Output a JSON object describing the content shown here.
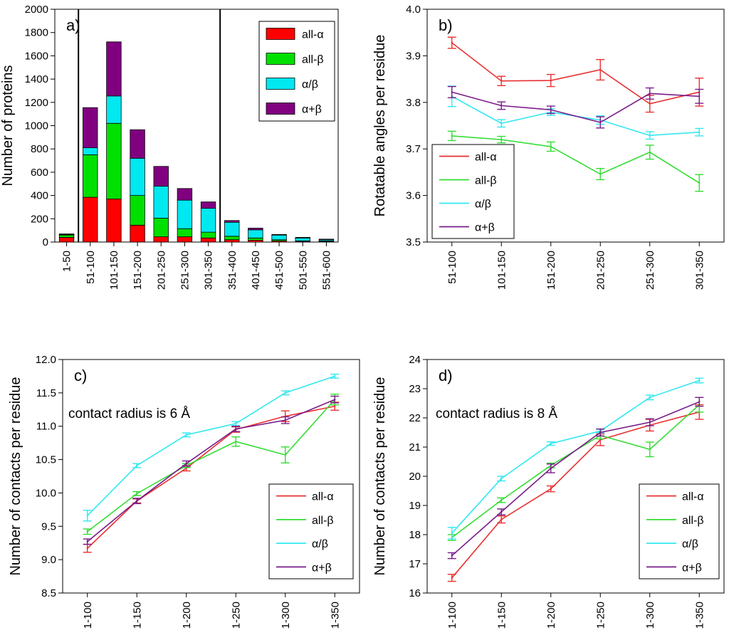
{
  "chart_data": [
    {
      "id": "a",
      "type": "bar",
      "stacked": true,
      "panel_label": "a)",
      "ylabel": "Number of proteins",
      "xlabel": "",
      "ylim": [
        0,
        2000
      ],
      "yticks": [
        0,
        200,
        400,
        600,
        800,
        1000,
        1200,
        1400,
        1600,
        1800,
        2000
      ],
      "categories": [
        "1-50",
        "51-100",
        "101-150",
        "151-200",
        "201-250",
        "251-300",
        "301-350",
        "351-400",
        "401-450",
        "451-500",
        "501-550",
        "551-600"
      ],
      "series": [
        {
          "name": "all-α",
          "color": "#ff0000",
          "values": [
            40,
            385,
            370,
            145,
            45,
            45,
            35,
            20,
            15,
            10,
            5,
            5
          ]
        },
        {
          "name": "all-β",
          "color": "#00e000",
          "values": [
            20,
            365,
            650,
            255,
            160,
            70,
            50,
            30,
            20,
            10,
            5,
            5
          ]
        },
        {
          "name": "α/β",
          "color": "#00e8f0",
          "values": [
            5,
            60,
            235,
            320,
            275,
            245,
            205,
            120,
            70,
            40,
            25,
            10
          ]
        },
        {
          "name": "α+β",
          "color": "#800080",
          "values": [
            5,
            345,
            465,
            245,
            170,
            100,
            55,
            15,
            15,
            5,
            5,
            5
          ]
        }
      ],
      "vlines_between_categories": [
        [
          0,
          1
        ],
        [
          6,
          7
        ]
      ],
      "legend": "top-right"
    },
    {
      "id": "b",
      "type": "line",
      "panel_label": "b)",
      "ylabel": "Rotatable angles per residue",
      "xlabel": "",
      "ylim": [
        3.5,
        4.0
      ],
      "yticks": [
        "3.5",
        "3.6",
        "3.7",
        "3.8",
        "3.9",
        "4.0"
      ],
      "categories": [
        "51-100",
        "101-150",
        "151-200",
        "201-250",
        "251-300",
        "301-350"
      ],
      "series": [
        {
          "name": "all-α",
          "color": "#e83030",
          "values": [
            3.928,
            3.846,
            3.847,
            3.87,
            3.797,
            3.822
          ],
          "errors": [
            0.012,
            0.01,
            0.013,
            0.022,
            0.018,
            0.03
          ]
        },
        {
          "name": "all-β",
          "color": "#33dd33",
          "values": [
            3.728,
            3.72,
            3.705,
            3.646,
            3.693,
            3.627
          ],
          "errors": [
            0.01,
            0.007,
            0.01,
            0.012,
            0.015,
            0.018
          ]
        },
        {
          "name": "α/β",
          "color": "#33e8f0",
          "values": [
            3.813,
            3.755,
            3.779,
            3.762,
            3.729,
            3.736
          ],
          "errors": [
            0.022,
            0.008,
            0.007,
            0.009,
            0.008,
            0.008
          ]
        },
        {
          "name": "α+β",
          "color": "#7a1c8a",
          "values": [
            3.822,
            3.793,
            3.784,
            3.757,
            3.819,
            3.813
          ],
          "errors": [
            0.012,
            0.008,
            0.008,
            0.012,
            0.012,
            0.015
          ]
        }
      ],
      "legend": "bottom-left"
    },
    {
      "id": "c",
      "type": "line",
      "panel_label": "c)",
      "annotation": "contact radius is 6 Å",
      "ylabel": "Number of contacts per residue",
      "xlabel": "",
      "ylim": [
        8.5,
        12.0
      ],
      "yticks": [
        "8.5",
        "9.0",
        "9.5",
        "10.0",
        "10.5",
        "11.0",
        "11.5",
        "12.0"
      ],
      "categories": [
        "1-100",
        "1-150",
        "1-200",
        "1-250",
        "1-300",
        "1-350"
      ],
      "series": [
        {
          "name": "all-α",
          "color": "#e83030",
          "values": [
            9.17,
            9.88,
            10.37,
            10.95,
            11.15,
            11.3
          ],
          "errors": [
            0.06,
            0.03,
            0.04,
            0.04,
            0.08,
            0.06
          ]
        },
        {
          "name": "all-β",
          "color": "#33dd33",
          "values": [
            9.42,
            9.99,
            10.41,
            10.77,
            10.57,
            11.4
          ],
          "errors": [
            0.04,
            0.03,
            0.03,
            0.07,
            0.12,
            0.08
          ]
        },
        {
          "name": "α/β",
          "color": "#33e8f0",
          "values": [
            9.66,
            10.41,
            10.87,
            11.04,
            11.5,
            11.75
          ],
          "errors": [
            0.08,
            0.03,
            0.03,
            0.03,
            0.03,
            0.03
          ]
        },
        {
          "name": "α+β",
          "color": "#7a1c8a",
          "values": [
            9.27,
            9.88,
            10.44,
            10.96,
            11.09,
            11.4
          ],
          "errors": [
            0.04,
            0.04,
            0.04,
            0.04,
            0.05,
            0.05
          ]
        }
      ],
      "legend": "bottom-right"
    },
    {
      "id": "d",
      "type": "line",
      "panel_label": "d)",
      "annotation": "contact radius is 8 Å",
      "ylabel": "Number of contacts per residue",
      "xlabel": "",
      "ylim": [
        16,
        24
      ],
      "yticks": [
        "16",
        "17",
        "18",
        "19",
        "20",
        "21",
        "22",
        "23",
        "24"
      ],
      "categories": [
        "1-100",
        "1-150",
        "1-200",
        "1-250",
        "1-300",
        "1-350"
      ],
      "series": [
        {
          "name": "all-α",
          "color": "#e83030",
          "values": [
            16.52,
            18.52,
            19.57,
            21.25,
            21.75,
            22.2
          ],
          "errors": [
            0.12,
            0.12,
            0.1,
            0.2,
            0.2,
            0.25
          ]
        },
        {
          "name": "all-β",
          "color": "#33dd33",
          "values": [
            17.9,
            19.18,
            20.37,
            21.4,
            20.92,
            22.45
          ],
          "errors": [
            0.1,
            0.08,
            0.08,
            0.12,
            0.25,
            0.25
          ]
        },
        {
          "name": "α/β",
          "color": "#33e8f0",
          "values": [
            18.05,
            19.92,
            21.12,
            21.55,
            22.7,
            23.28
          ],
          "errors": [
            0.2,
            0.08,
            0.06,
            0.06,
            0.08,
            0.08
          ]
        },
        {
          "name": "α+β",
          "color": "#7a1c8a",
          "values": [
            17.28,
            18.78,
            20.27,
            21.5,
            21.85,
            22.55
          ],
          "errors": [
            0.1,
            0.1,
            0.15,
            0.12,
            0.12,
            0.15
          ]
        }
      ],
      "legend": "bottom-right"
    }
  ]
}
